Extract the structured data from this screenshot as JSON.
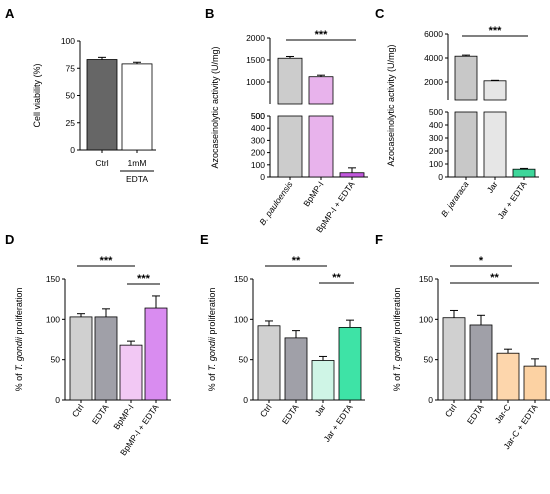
{
  "chart_data": [
    {
      "id": "A",
      "panel_letter": "A",
      "type": "bar",
      "ylabel": "Cell viability (%)",
      "ylim": [
        0,
        100
      ],
      "yticks": [
        0,
        25,
        50,
        75,
        100
      ],
      "categories": [
        "Ctrl",
        "1mM"
      ],
      "group_label": "EDTA",
      "values": [
        83,
        79
      ],
      "errors": [
        2,
        1.5
      ],
      "fills": [
        "#666666",
        "#ffffff"
      ],
      "significance": []
    },
    {
      "id": "B",
      "panel_letter": "B",
      "type": "bar",
      "ylabel": "Azocaseinolytic activity (U/mg)",
      "broken_axis": true,
      "ylim_lower": [
        0,
        500
      ],
      "yticks_lower": [
        0,
        100,
        200,
        300,
        400,
        500
      ],
      "ylim_upper": [
        500,
        2000
      ],
      "yticks_upper": [
        500,
        1000,
        1500,
        2000
      ],
      "categories": [
        "B. pauloensis",
        "BpMP-I",
        "BpMP-I + EDTA"
      ],
      "italic_categories": [
        0
      ],
      "values": [
        1540,
        1120,
        35
      ],
      "errors": [
        40,
        35,
        40
      ],
      "fills": [
        "#cccccc",
        "#e8b3ec",
        "#c158dc"
      ],
      "significance": [
        {
          "from": 0,
          "to": 2,
          "label": "***"
        }
      ]
    },
    {
      "id": "C",
      "panel_letter": "C",
      "type": "bar",
      "ylabel": "Azocaseinolytic activity (U/mg)",
      "broken_axis": true,
      "ylim_lower": [
        0,
        500
      ],
      "yticks_lower": [
        0,
        100,
        200,
        300,
        400,
        500
      ],
      "ylim_upper": [
        500,
        6000
      ],
      "yticks_upper": [
        2000,
        4000,
        6000
      ],
      "categories": [
        "B. jararaca",
        "Jar",
        "Jar + EDTA"
      ],
      "italic_categories": [
        0
      ],
      "values": [
        4150,
        2100,
        60
      ],
      "errors": [
        90,
        40,
        6
      ],
      "fills": [
        "#c8c8c8",
        "#e6e6e6",
        "#3ed69a"
      ],
      "significance": [
        {
          "from": 0,
          "to": 2,
          "label": "***"
        }
      ]
    },
    {
      "id": "D",
      "panel_letter": "D",
      "type": "bar",
      "ylabel": "% of T. gondii proliferation",
      "ylim": [
        0,
        150
      ],
      "yticks": [
        0,
        50,
        100,
        150
      ],
      "categories": [
        "Ctrl",
        "EDTA",
        "BpMP-I",
        "BpMP-I + EDTA"
      ],
      "values": [
        103,
        103,
        68,
        114
      ],
      "errors": [
        4,
        10,
        5,
        15
      ],
      "fills": [
        "#d0d0d0",
        "#a0a0a8",
        "#f2c8f4",
        "#d98cf0"
      ],
      "significance": [
        {
          "from": 0,
          "to": 2,
          "label": "***",
          "level": 0
        },
        {
          "from": 2,
          "to": 3,
          "label": "***",
          "level": 1
        }
      ]
    },
    {
      "id": "E",
      "panel_letter": "E",
      "type": "bar",
      "ylabel": "% of T. gondii proliferation",
      "ylim": [
        0,
        150
      ],
      "yticks": [
        0,
        50,
        100,
        150
      ],
      "categories": [
        "Ctrl",
        "EDTA",
        "Jar",
        "Jar + EDTA"
      ],
      "values": [
        92,
        77,
        49,
        90
      ],
      "errors": [
        6,
        9,
        5,
        9
      ],
      "fills": [
        "#d0d0d0",
        "#a0a0a8",
        "#cff5e6",
        "#3ee3a6"
      ],
      "significance": [
        {
          "from": 0,
          "to": 2,
          "label": "**",
          "level": 0
        },
        {
          "from": 2,
          "to": 3,
          "label": "**",
          "level": 1
        }
      ]
    },
    {
      "id": "F",
      "panel_letter": "F",
      "type": "bar",
      "ylabel": "% of T. gondii proliferation",
      "ylim": [
        0,
        150
      ],
      "yticks": [
        0,
        50,
        100,
        150
      ],
      "categories": [
        "Ctrl",
        "EDTA",
        "Jar-C",
        "Jar-C + EDTA"
      ],
      "values": [
        102,
        93,
        58,
        42
      ],
      "errors": [
        9,
        12,
        5,
        9
      ],
      "fills": [
        "#d0d0d0",
        "#a0a0a8",
        "#fdd6ac",
        "#fcd2a3"
      ],
      "significance": [
        {
          "from": 0,
          "to": 2,
          "label": "*",
          "level": 0
        },
        {
          "from": 0,
          "to": 3,
          "label": "**",
          "level": 1
        }
      ]
    }
  ]
}
